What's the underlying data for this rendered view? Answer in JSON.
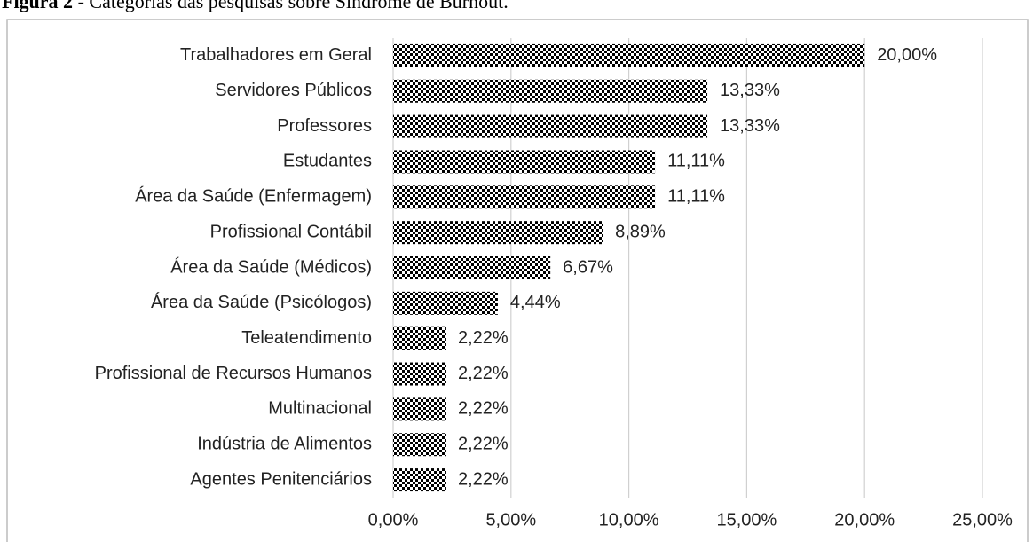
{
  "caption": {
    "label": "Figura 2",
    "text": " - Categorias das pesquisas sobre Síndrome de Burnout."
  },
  "chart_data": {
    "type": "bar",
    "orientation": "horizontal",
    "categories": [
      "Trabalhadores em Geral",
      "Servidores Públicos",
      "Professores",
      "Estudantes",
      "Área da Saúde (Enfermagem)",
      "Profissional Contábil",
      "Área da Saúde (Médicos)",
      "Área da Saúde (Psicólogos)",
      "Teleatendimento",
      "Profissional de Recursos Humanos",
      "Multinacional",
      "Indústria de Alimentos",
      "Agentes Penitenciários"
    ],
    "values": [
      20,
      13.33,
      13.33,
      11.11,
      11.11,
      8.89,
      6.67,
      4.44,
      2.22,
      2.22,
      2.22,
      2.22,
      2.22
    ],
    "value_labels": [
      "20,00%",
      "13,33%",
      "13,33%",
      "11,11%",
      "11,11%",
      "8,89%",
      "6,67%",
      "4,44%",
      "2,22%",
      "2,22%",
      "2,22%",
      "2,22%",
      "2,22%"
    ],
    "color": "#000000",
    "xlim": [
      0,
      25
    ],
    "xticks": [
      {
        "value": 0,
        "label": "0,00%"
      },
      {
        "value": 5,
        "label": "5,00%"
      },
      {
        "value": 10,
        "label": "10,00%"
      },
      {
        "value": 15,
        "label": "15,00%"
      },
      {
        "value": 20,
        "label": "20,00%"
      },
      {
        "value": 25,
        "label": "25,00%"
      }
    ],
    "grid": true
  }
}
